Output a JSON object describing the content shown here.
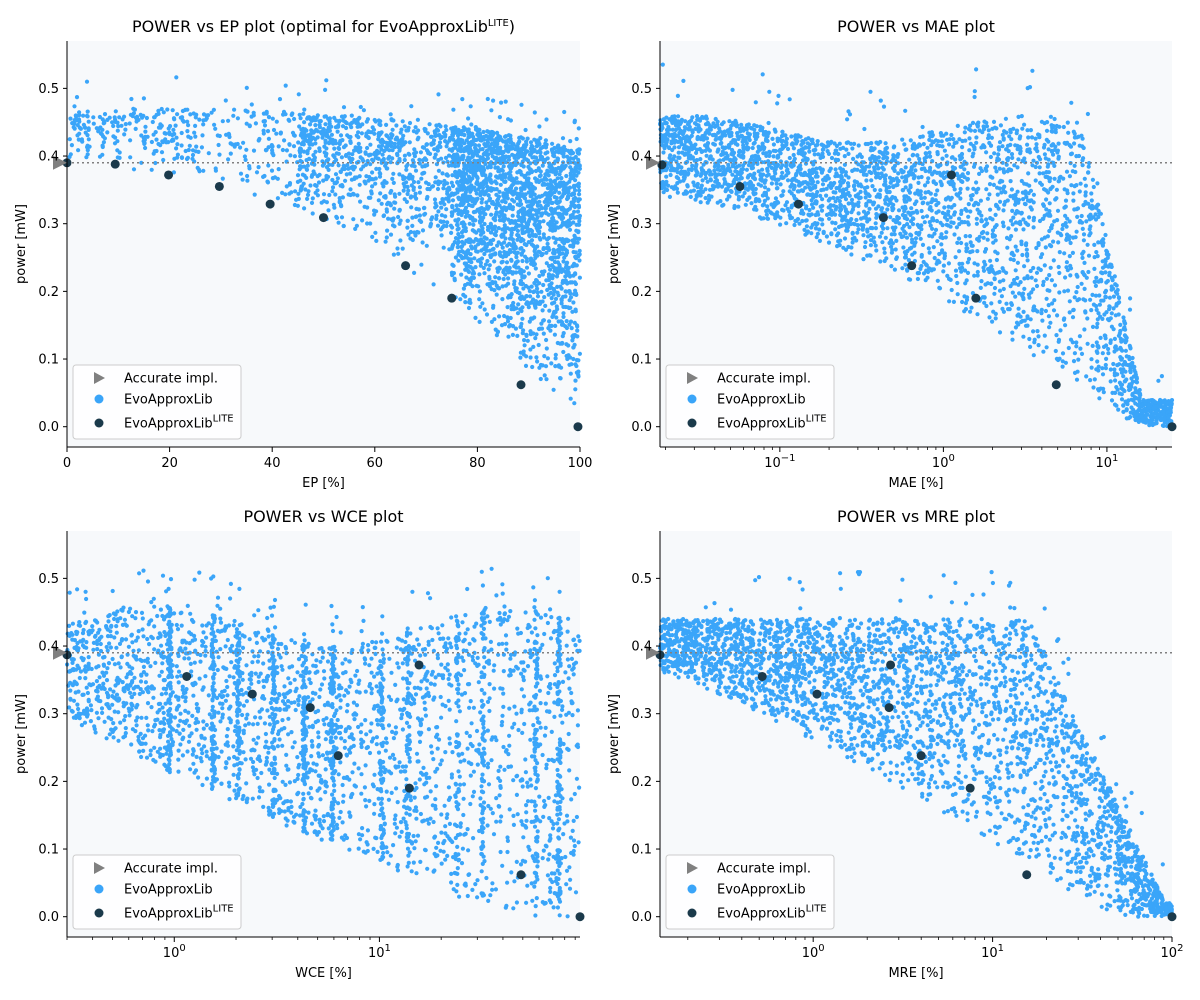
{
  "colors": {
    "background": "#f7f9fb",
    "cloud": "#3aa5f9",
    "lite": "#1b3a4b",
    "accurate": "#808080",
    "ref_line": "#808080"
  },
  "legend": {
    "accurate": "Accurate impl.",
    "evo": "EvoApproxLib",
    "lite": "EvoApproxLib",
    "lite_sup": "LITE"
  },
  "chart_data": [
    {
      "type": "scatter",
      "title": "POWER vs EP plot (optimal for EvoApproxLib",
      "title_sup": "LITE",
      "title_suffix": ")",
      "xlabel": "EP [%]",
      "ylabel": "power [mW]",
      "xscale": "linear",
      "xlim": [
        0,
        100
      ],
      "ylim": [
        -0.03,
        0.57
      ],
      "xticks": [
        {
          "v": 0,
          "t": "0"
        },
        {
          "v": 20,
          "t": "20"
        },
        {
          "v": 40,
          "t": "40"
        },
        {
          "v": 60,
          "t": "60"
        },
        {
          "v": 80,
          "t": "80"
        },
        {
          "v": 100,
          "t": "100"
        }
      ],
      "yticks": [
        {
          "v": 0,
          "t": "0.0"
        },
        {
          "v": 0.1,
          "t": "0.1"
        },
        {
          "v": 0.2,
          "t": "0.2"
        },
        {
          "v": 0.3,
          "t": "0.3"
        },
        {
          "v": 0.4,
          "t": "0.4"
        },
        {
          "v": 0.5,
          "t": "0.5"
        }
      ],
      "accurate": {
        "x": 0,
        "y": 0.39
      },
      "ref_y": 0.39,
      "legend_position": "lower-left",
      "lite_points": [
        [
          0,
          0.39
        ],
        [
          9.4,
          0.388
        ],
        [
          19.8,
          0.372
        ],
        [
          29.7,
          0.355
        ],
        [
          39.6,
          0.329
        ],
        [
          50,
          0.309
        ],
        [
          66,
          0.238
        ],
        [
          75,
          0.19
        ],
        [
          88.5,
          0.062
        ],
        [
          99.6,
          0.0
        ]
      ],
      "cloud": {
        "type": "ep"
      }
    },
    {
      "type": "scatter",
      "title": "POWER vs MAE plot",
      "xlabel": "MAE [%]",
      "ylabel": "power [mW]",
      "xscale": "log",
      "xlim": [
        0.0185,
        25
      ],
      "ylim": [
        -0.03,
        0.57
      ],
      "xticks": [
        {
          "v": 0.1,
          "base": "10",
          "exp": "−1"
        },
        {
          "v": 1,
          "base": "10",
          "exp": "0"
        },
        {
          "v": 10,
          "base": "10",
          "exp": "1"
        }
      ],
      "yticks": [
        {
          "v": 0,
          "t": "0.0"
        },
        {
          "v": 0.1,
          "t": "0.1"
        },
        {
          "v": 0.2,
          "t": "0.2"
        },
        {
          "v": 0.3,
          "t": "0.3"
        },
        {
          "v": 0.4,
          "t": "0.4"
        },
        {
          "v": 0.5,
          "t": "0.5"
        }
      ],
      "accurate": {
        "x": 0.0185,
        "y": 0.39
      },
      "ref_y": 0.39,
      "legend_position": "lower-left",
      "lite_points": [
        [
          0.019,
          0.387
        ],
        [
          0.057,
          0.355
        ],
        [
          0.13,
          0.329
        ],
        [
          0.43,
          0.309
        ],
        [
          0.64,
          0.238
        ],
        [
          1.12,
          0.372
        ],
        [
          1.58,
          0.19
        ],
        [
          4.9,
          0.062
        ],
        [
          25,
          0.0
        ]
      ],
      "cloud": {
        "type": "mae"
      }
    },
    {
      "type": "scatter",
      "title": "POWER vs WCE plot",
      "xlabel": "WCE [%]",
      "ylabel": "power [mW]",
      "xscale": "log",
      "xlim": [
        0.3,
        95
      ],
      "ylim": [
        -0.03,
        0.57
      ],
      "xticks": [
        {
          "v": 1,
          "base": "10",
          "exp": "0"
        },
        {
          "v": 10,
          "base": "10",
          "exp": "1"
        }
      ],
      "yticks": [
        {
          "v": 0,
          "t": "0.0"
        },
        {
          "v": 0.1,
          "t": "0.1"
        },
        {
          "v": 0.2,
          "t": "0.2"
        },
        {
          "v": 0.3,
          "t": "0.3"
        },
        {
          "v": 0.4,
          "t": "0.4"
        },
        {
          "v": 0.5,
          "t": "0.5"
        }
      ],
      "accurate": {
        "x": 0.3,
        "y": 0.39
      },
      "ref_y": 0.39,
      "legend_position": "lower-left",
      "lite_points": [
        [
          0.3,
          0.387
        ],
        [
          1.15,
          0.355
        ],
        [
          2.4,
          0.329
        ],
        [
          4.6,
          0.309
        ],
        [
          6.3,
          0.238
        ],
        [
          15.6,
          0.372
        ],
        [
          14,
          0.19
        ],
        [
          49,
          0.062
        ],
        [
          95,
          0.0
        ]
      ],
      "cloud": {
        "type": "wce"
      }
    },
    {
      "type": "scatter",
      "title": "POWER vs MRE plot",
      "xlabel": "MRE [%]",
      "ylabel": "power [mW]",
      "xscale": "log",
      "xlim": [
        0.14,
        100
      ],
      "ylim": [
        -0.03,
        0.57
      ],
      "xticks": [
        {
          "v": 1,
          "base": "10",
          "exp": "0"
        },
        {
          "v": 10,
          "base": "10",
          "exp": "1"
        },
        {
          "v": 100,
          "base": "10",
          "exp": "2"
        }
      ],
      "yticks": [
        {
          "v": 0,
          "t": "0.0"
        },
        {
          "v": 0.1,
          "t": "0.1"
        },
        {
          "v": 0.2,
          "t": "0.2"
        },
        {
          "v": 0.3,
          "t": "0.3"
        },
        {
          "v": 0.4,
          "t": "0.4"
        },
        {
          "v": 0.5,
          "t": "0.5"
        }
      ],
      "accurate": {
        "x": 0.14,
        "y": 0.39
      },
      "ref_y": 0.39,
      "legend_position": "lower-left",
      "lite_points": [
        [
          0.14,
          0.387
        ],
        [
          0.52,
          0.355
        ],
        [
          1.05,
          0.329
        ],
        [
          2.65,
          0.309
        ],
        [
          2.7,
          0.372
        ],
        [
          4.0,
          0.238
        ],
        [
          7.5,
          0.19
        ],
        [
          15.5,
          0.062
        ],
        [
          100,
          0.0
        ]
      ],
      "cloud": {
        "type": "mre"
      }
    }
  ]
}
